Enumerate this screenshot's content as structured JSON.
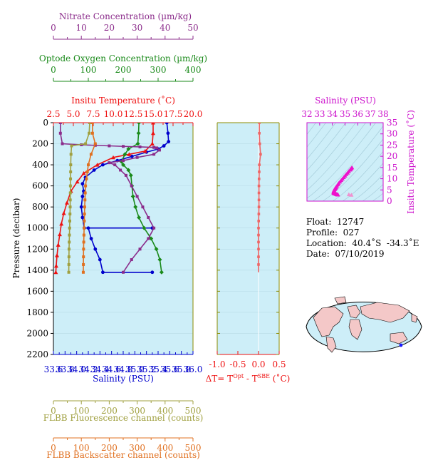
{
  "colors": {
    "nitrate": "#8b2c8b",
    "oxygen": "#1a8a1a",
    "temperature": "#ee1111",
    "salinity": "#0000cc",
    "fluorescence": "#a0a040",
    "backscatter": "#e07020",
    "deltaT": "#ee6666",
    "ts_axis": "#cc11cc",
    "panel_bg": "#cdeef8",
    "grid": "#b8dbe6"
  },
  "float_info": {
    "float": "Float:  12747",
    "profile": "Profile:  027",
    "location": "Location:  40.4˚S  -34.3˚E",
    "date": "Date:  07/10/2019"
  },
  "chart_data": [
    {
      "id": "main_profiles",
      "type": "line",
      "ylabel": "Pressure (decibar)",
      "ylim": [
        2200,
        0
      ],
      "yticks": [
        "0",
        "200",
        "400",
        "600",
        "800",
        "1000",
        "1200",
        "1400",
        "1600",
        "1800",
        "2000",
        "2200"
      ],
      "ytick_values": [
        0,
        200,
        400,
        600,
        800,
        1000,
        1200,
        1400,
        1600,
        1800,
        2000,
        2200
      ],
      "axes": {
        "nitrate": {
          "label": "Nitrate Concentration (µm/kg)",
          "range": [
            0,
            50
          ],
          "ticks": [
            "0",
            "10",
            "20",
            "30",
            "40",
            "50"
          ],
          "tick_values": [
            0,
            10,
            20,
            30,
            40,
            50
          ]
        },
        "oxygen": {
          "label": "Optode Oxygen Concentration (µm/kg)",
          "range": [
            0,
            400
          ],
          "ticks": [
            "0",
            "100",
            "200",
            "300",
            "400"
          ],
          "tick_values": [
            0,
            100,
            200,
            300,
            400
          ]
        },
        "temperature": {
          "label": "Insitu Temperature (˚C)",
          "range": [
            2.5,
            20.0
          ],
          "ticks": [
            "2.5",
            "5.0",
            "7.5",
            "10.0",
            "12.5",
            "15.0",
            "17.5",
            "20.0"
          ],
          "tick_values": [
            2.5,
            5.0,
            7.5,
            10.0,
            12.5,
            15.0,
            17.5,
            20.0
          ]
        },
        "salinity": {
          "label": "Salinity (PSU)",
          "range": [
            33.6,
            36.0
          ],
          "ticks": [
            "33.6",
            "33.8",
            "34.0",
            "34.2",
            "34.4",
            "34.6",
            "34.8",
            "35.0",
            "35.2",
            "35.4",
            "35.6",
            "35.8",
            "36.0"
          ],
          "tick_values": [
            33.6,
            33.8,
            34.0,
            34.2,
            34.4,
            34.6,
            34.8,
            35.0,
            35.2,
            35.4,
            35.6,
            35.8,
            36.0
          ]
        },
        "fluorescence": {
          "label": "FLBB Fluorescence channel (counts)",
          "range": [
            0,
            500
          ],
          "ticks": [
            "0",
            "100",
            "200",
            "300",
            "400",
            "500"
          ],
          "tick_values": [
            0,
            100,
            200,
            300,
            400,
            500
          ]
        },
        "backscatter": {
          "label": "FLBB Backscatter channel (counts)",
          "range": [
            0,
            500
          ],
          "ticks": [
            "0",
            "100",
            "200",
            "300",
            "400",
            "500"
          ],
          "tick_values": [
            0,
            100,
            200,
            300,
            400,
            500
          ]
        }
      },
      "series": [
        {
          "key": "salinity",
          "marker": "circle",
          "points": [
            [
              35.55,
              0
            ],
            [
              35.57,
              100
            ],
            [
              35.58,
              180
            ],
            [
              35.5,
              220
            ],
            [
              35.4,
              250
            ],
            [
              35.2,
              280
            ],
            [
              34.95,
              320
            ],
            [
              34.7,
              360
            ],
            [
              34.45,
              400
            ],
            [
              34.3,
              450
            ],
            [
              34.15,
              520
            ],
            [
              34.1,
              580
            ],
            [
              34.12,
              650
            ],
            [
              34.1,
              700
            ],
            [
              34.08,
              800
            ],
            [
              34.1,
              900
            ],
            [
              34.13,
              1000
            ],
            [
              35.3,
              1000
            ],
            [
              34.2,
              1000
            ],
            [
              34.25,
              1100
            ],
            [
              34.32,
              1200
            ],
            [
              34.4,
              1300
            ],
            [
              34.45,
              1420
            ],
            [
              35.3,
              1420
            ]
          ]
        },
        {
          "key": "temperature",
          "marker": "triangle",
          "points": [
            [
              15.0,
              0
            ],
            [
              15.0,
              100
            ],
            [
              14.9,
              200
            ],
            [
              14.0,
              270
            ],
            [
              12.0,
              300
            ],
            [
              10.0,
              330
            ],
            [
              8.0,
              400
            ],
            [
              6.3,
              480
            ],
            [
              5.5,
              560
            ],
            [
              4.7,
              650
            ],
            [
              4.2,
              760
            ],
            [
              3.8,
              860
            ],
            [
              3.5,
              960
            ],
            [
              3.3,
              1060
            ],
            [
              3.1,
              1160
            ],
            [
              2.95,
              1260
            ],
            [
              2.85,
              1360
            ],
            [
              2.8,
              1420
            ]
          ]
        },
        {
          "key": "oxygen",
          "marker": "diamond",
          "points": [
            [
              245,
              0
            ],
            [
              244,
              100
            ],
            [
              242,
              200
            ],
            [
              215,
              250
            ],
            [
              205,
              300
            ],
            [
              195,
              370
            ],
            [
              200,
              400
            ],
            [
              215,
              450
            ],
            [
              222,
              500
            ],
            [
              225,
              600
            ],
            [
              228,
              700
            ],
            [
              235,
              800
            ],
            [
              245,
              900
            ],
            [
              260,
              1000
            ],
            [
              280,
              1100
            ],
            [
              295,
              1200
            ],
            [
              305,
              1300
            ],
            [
              310,
              1420
            ]
          ]
        },
        {
          "key": "nitrate",
          "marker": "square",
          "points": [
            [
              2.5,
              0
            ],
            [
              2.5,
              100
            ],
            [
              3.2,
              200
            ],
            [
              10,
              210
            ],
            [
              15,
              215
            ],
            [
              20,
              220
            ],
            [
              25,
              225
            ],
            [
              31,
              230
            ],
            [
              36,
              235
            ],
            [
              37,
              240
            ],
            [
              38,
              260
            ],
            [
              36,
              300
            ],
            [
              30,
              330
            ],
            [
              25,
              360
            ],
            [
              20,
              380
            ],
            [
              22,
              400
            ],
            [
              24,
              450
            ],
            [
              26,
              500
            ],
            [
              28,
              600
            ],
            [
              30,
              700
            ],
            [
              32,
              800
            ],
            [
              34,
              900
            ],
            [
              36,
              1000
            ],
            [
              34,
              1100
            ],
            [
              31,
              1200
            ],
            [
              28,
              1300
            ],
            [
              25,
              1420
            ]
          ]
        },
        {
          "key": "fluorescence",
          "marker": "square",
          "points": [
            [
              130,
              0
            ],
            [
              128,
              100
            ],
            [
              115,
              200
            ],
            [
              65,
              220
            ],
            [
              63,
              300
            ],
            [
              62,
              400
            ],
            [
              61,
              600
            ],
            [
              60,
              800
            ],
            [
              58,
              1000
            ],
            [
              56,
              1200
            ],
            [
              55,
              1420
            ]
          ]
        },
        {
          "key": "backscatter",
          "marker": "square",
          "points": [
            [
              140,
              0
            ],
            [
              140,
              100
            ],
            [
              150,
              200
            ],
            [
              135,
              300
            ],
            [
              125,
              400
            ],
            [
              115,
              600
            ],
            [
              112,
              800
            ],
            [
              110,
              1000
            ],
            [
              108,
              1200
            ],
            [
              107,
              1420
            ]
          ]
        }
      ]
    },
    {
      "id": "delta_t",
      "type": "line",
      "xlabel": "ΔT= T",
      "xlabel_sup1": "Opt",
      "xlabel_mid": " - T",
      "xlabel_sup2": "SBE",
      "xlabel_end": " (˚C)",
      "xlim": [
        -1.0,
        0.5
      ],
      "ylim": [
        2200,
        0
      ],
      "xticks": [
        "-1.0",
        "-0.5",
        "0.0",
        "0.5"
      ],
      "xtick_values": [
        -1.0,
        -0.5,
        0.0,
        0.5
      ],
      "points": [
        [
          0.02,
          0
        ],
        [
          0.02,
          100
        ],
        [
          0.03,
          200
        ],
        [
          0.05,
          300
        ],
        [
          0.02,
          400
        ],
        [
          0.01,
          600
        ],
        [
          0.01,
          800
        ],
        [
          0.0,
          1000
        ],
        [
          0.0,
          1200
        ],
        [
          0.0,
          1420
        ]
      ]
    },
    {
      "id": "ts_diagram",
      "type": "scatter",
      "xlabel": "Salinity (PSU)",
      "ylabel": "Insitu Temperature (˚C)",
      "xlim": [
        32,
        38
      ],
      "ylim": [
        0,
        35
      ],
      "xticks": [
        "32",
        "33",
        "34",
        "35",
        "36",
        "37",
        "38"
      ],
      "xtick_values": [
        32,
        33,
        34,
        35,
        36,
        37,
        38
      ],
      "yticks": [
        "0",
        "5",
        "10",
        "15",
        "20",
        "25",
        "30",
        "35"
      ],
      "ytick_values": [
        0,
        5,
        10,
        15,
        20,
        25,
        30,
        35
      ],
      "points": [
        [
          35.55,
          15.0
        ],
        [
          35.4,
          14.0
        ],
        [
          35.1,
          12.0
        ],
        [
          34.8,
          10.0
        ],
        [
          34.5,
          8.0
        ],
        [
          34.3,
          6.3
        ],
        [
          34.2,
          5.5
        ],
        [
          34.12,
          4.7
        ],
        [
          34.1,
          4.2
        ],
        [
          34.1,
          3.8
        ],
        [
          34.13,
          3.5
        ],
        [
          34.25,
          3.3
        ],
        [
          34.32,
          3.1
        ],
        [
          34.4,
          2.95
        ],
        [
          34.45,
          2.85
        ],
        [
          35.3,
          3.0
        ],
        [
          35.5,
          2.8
        ]
      ]
    }
  ]
}
